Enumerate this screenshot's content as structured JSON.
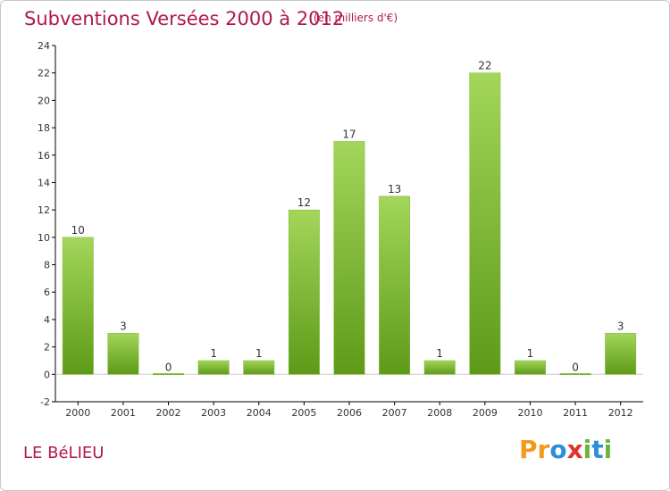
{
  "header": {
    "title": "Subventions Versées 2000 à 2012",
    "subtitle": "(en milliers d'€)"
  },
  "footer": {
    "commune": "LE BéLIEU",
    "logo_text": "Proxiti",
    "logo_letters": [
      {
        "char": "P",
        "color": "#f39a1e"
      },
      {
        "char": "r",
        "color": "#f39a1e"
      },
      {
        "char": "o",
        "color": "#2f8fd6"
      },
      {
        "char": "x",
        "color": "#e0332f"
      },
      {
        "char": "i",
        "color": "#6db33f"
      },
      {
        "char": "t",
        "color": "#2f8fd6"
      },
      {
        "char": "i",
        "color": "#6db33f"
      }
    ]
  },
  "colors": {
    "title": "#b0174e",
    "bar_top": "#a3d65a",
    "bar_bottom": "#5e9a18",
    "axis": "#000000",
    "grid": "#dddddd"
  },
  "chart_data": {
    "type": "bar",
    "categories": [
      "2000",
      "2001",
      "2002",
      "2003",
      "2004",
      "2005",
      "2006",
      "2007",
      "2008",
      "2009",
      "2010",
      "2011",
      "2012"
    ],
    "values": [
      10,
      3,
      0,
      1,
      1,
      12,
      17,
      13,
      1,
      22,
      1,
      0,
      3
    ],
    "value_labels": [
      "10",
      "3",
      "0",
      "1",
      "1",
      "12",
      "17",
      "13",
      "1",
      "22",
      "1",
      "0",
      "3"
    ],
    "title": "Subventions Versées 2000 à 2012",
    "subtitle": "(en milliers d'€)",
    "xlabel": "",
    "ylabel": "",
    "ylim": [
      -2,
      24
    ],
    "yticks": [
      -2,
      0,
      2,
      4,
      6,
      8,
      10,
      12,
      14,
      16,
      18,
      20,
      22,
      24
    ],
    "ytick_labels": [
      "-2",
      "0",
      "2",
      "4",
      "6",
      "8",
      "10",
      "12",
      "14",
      "16",
      "18",
      "20",
      "22",
      "24"
    ],
    "grid": false,
    "legend": "none"
  }
}
